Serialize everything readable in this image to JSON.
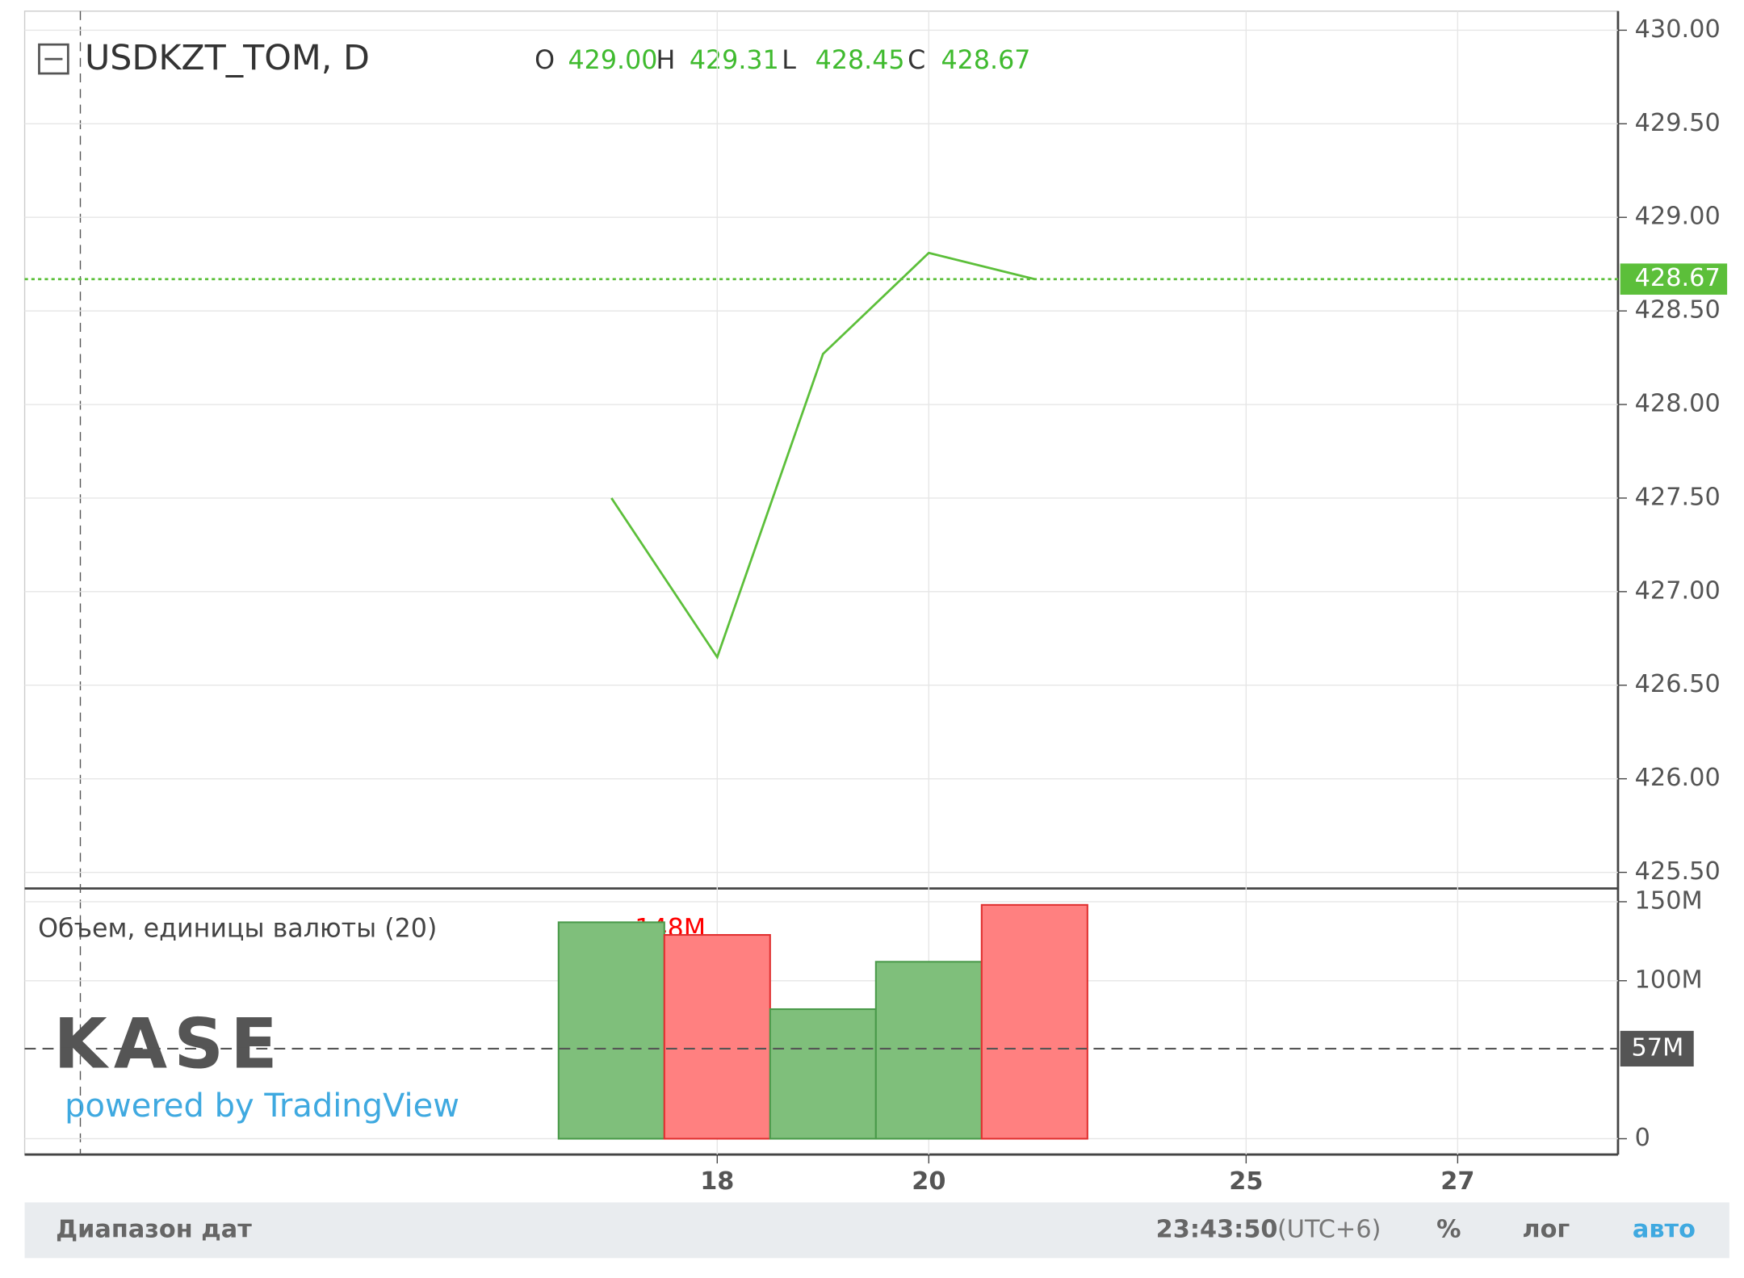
{
  "header": {
    "ohlc": [
      {
        "key": "O",
        "value": "429.00"
      },
      {
        "key": "H",
        "value": "429.31"
      },
      {
        "key": "L",
        "value": "428.45"
      },
      {
        "key": "C",
        "value": "428.67"
      }
    ]
  },
  "chart_data": [
    {
      "type": "line",
      "title": "USDKZT_TOM, D",
      "color": "#5cbf3a",
      "categories": [
        null,
        "18",
        null,
        "20",
        null,
        null,
        "25",
        null,
        "27"
      ],
      "values": [
        427.5,
        426.65,
        428.27,
        428.81,
        428.67,
        null,
        null,
        null,
        null
      ],
      "ylim": [
        425.42,
        430.09
      ],
      "yticks": [
        {
          "value": 425.5,
          "label": "425.50"
        },
        {
          "value": 426,
          "label": "426.00"
        },
        {
          "value": 426.5,
          "label": "426.50"
        },
        {
          "value": 427,
          "label": "427.00"
        },
        {
          "value": 427.5,
          "label": "427.50"
        },
        {
          "value": 428,
          "label": "428.00"
        },
        {
          "value": 428.5,
          "label": "428.50"
        },
        {
          "value": 429,
          "label": "429.00"
        },
        {
          "value": 429.5,
          "label": "429.50"
        },
        {
          "value": 430,
          "label": "430.00"
        }
      ],
      "last_price": {
        "value": 428.67,
        "label": "428.67"
      },
      "grid": true
    },
    {
      "type": "bar",
      "title": "Объем, единицы валюты (20)",
      "legend_value": "148M",
      "categories": [
        null,
        "18",
        null,
        "20",
        null,
        null,
        "25",
        null,
        "27"
      ],
      "values": [
        137000000,
        129000000,
        82000000,
        112000000,
        148000000,
        null,
        null,
        null,
        null
      ],
      "colors": [
        "#7fbf7b",
        "#ff8080",
        "#7fbf7b",
        "#7fbf7b",
        "#ff8080",
        null,
        null,
        null,
        null
      ],
      "ylim": [
        -10000000,
        157000000
      ],
      "yticks": [
        0,
        {
          "value": 100000000,
          "label": "100M"
        },
        {
          "value": 150000000,
          "label": "150M"
        }
      ],
      "ma_level": {
        "value": 57000000,
        "label": "57M"
      },
      "grid": true
    }
  ],
  "logo": {
    "name": "KASE",
    "powered": "powered by TradingView"
  },
  "footer": {
    "date_range": "Диапазон дат",
    "time": "23:43:50",
    "tz": "(UTC+6)",
    "percent": "%",
    "log": "лог",
    "auto": "авто"
  }
}
